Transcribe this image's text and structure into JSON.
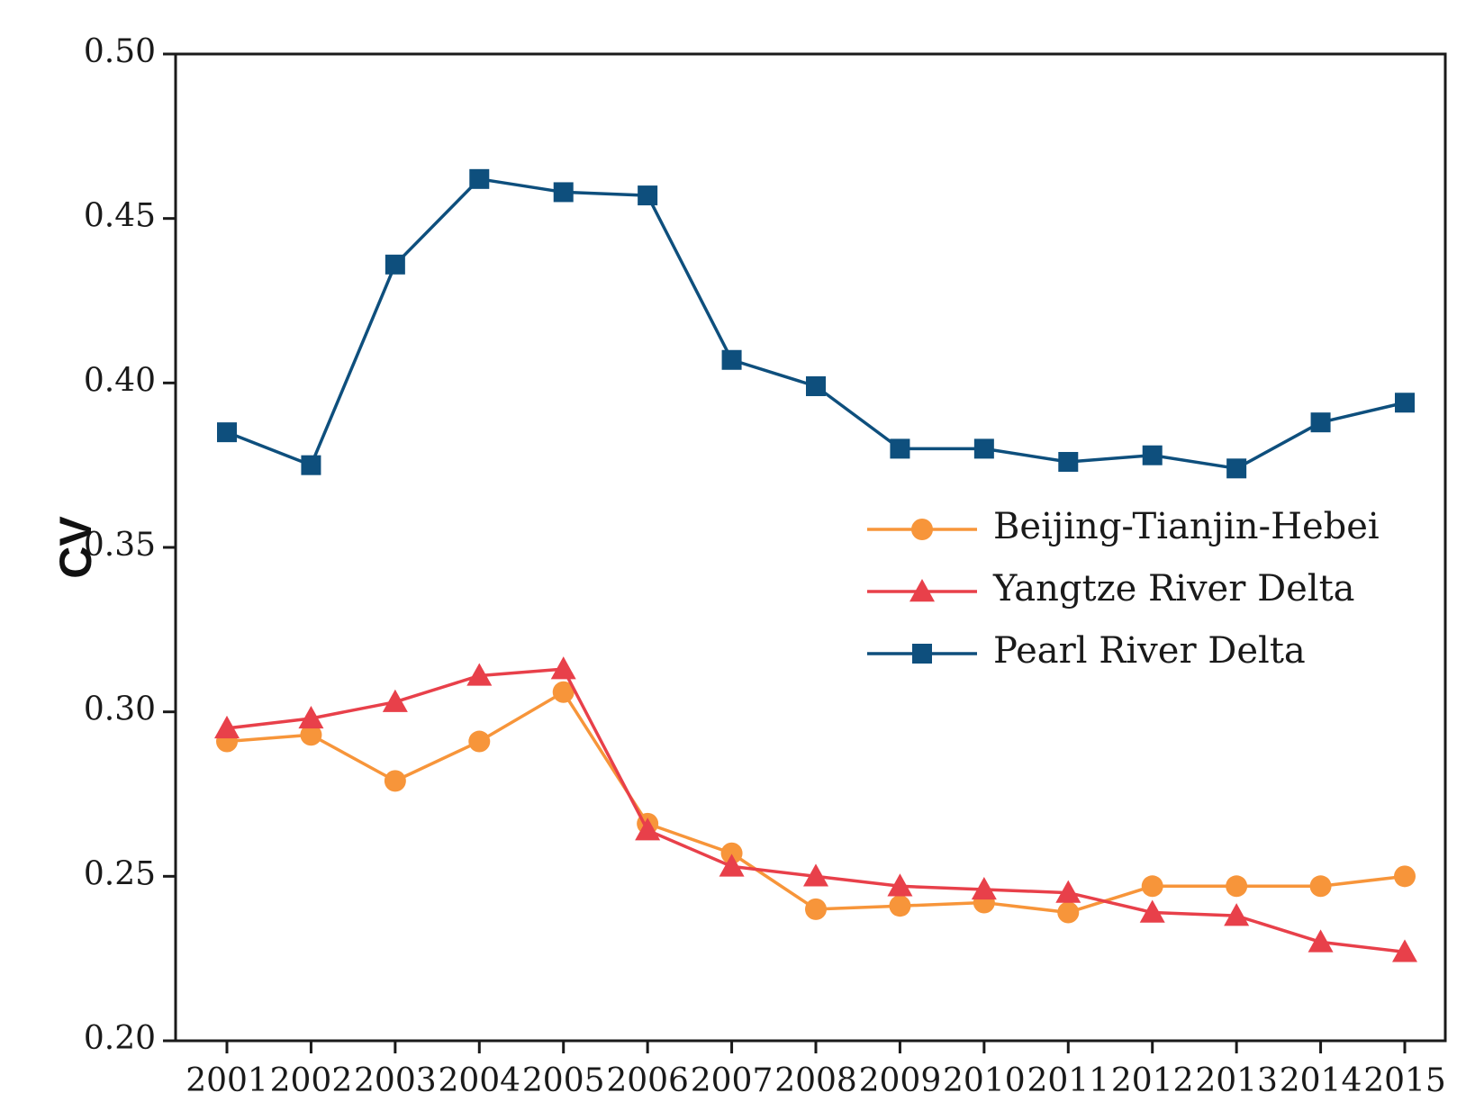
{
  "chart_data": {
    "type": "line",
    "title": "",
    "xlabel": "",
    "ylabel": "CV",
    "ylim": [
      0.2,
      0.5
    ],
    "yticks": [
      "0.20",
      "0.25",
      "0.30",
      "0.35",
      "0.40",
      "0.45",
      "0.50"
    ],
    "ytick_values": [
      0.2,
      0.25,
      0.3,
      0.35,
      0.4,
      0.45,
      0.5
    ],
    "x": [
      "2001",
      "2002",
      "2003",
      "2004",
      "2005",
      "2006",
      "2007",
      "2008",
      "2009",
      "2010",
      "2011",
      "2012",
      "2013",
      "2014",
      "2015"
    ],
    "legend_position": "right-middle",
    "grid": false,
    "series": [
      {
        "name": "Beijing-Tianjin-Hebei",
        "color": "#f7953a",
        "marker": "circle",
        "values": [
          0.291,
          0.293,
          0.279,
          0.291,
          0.306,
          0.266,
          0.257,
          0.24,
          0.241,
          0.242,
          0.239,
          0.247,
          0.247,
          0.247,
          0.25
        ]
      },
      {
        "name": "Yangtze River Delta",
        "color": "#e8404a",
        "marker": "triangle",
        "values": [
          0.295,
          0.298,
          0.303,
          0.311,
          0.313,
          0.264,
          0.253,
          0.25,
          0.247,
          0.246,
          0.245,
          0.239,
          0.238,
          0.23,
          0.227
        ]
      },
      {
        "name": "Pearl River Delta",
        "color": "#0e4f7d",
        "marker": "square",
        "values": [
          0.385,
          0.375,
          0.436,
          0.462,
          0.458,
          0.457,
          0.407,
          0.399,
          0.38,
          0.38,
          0.376,
          0.378,
          0.374,
          0.388,
          0.394
        ]
      }
    ]
  }
}
